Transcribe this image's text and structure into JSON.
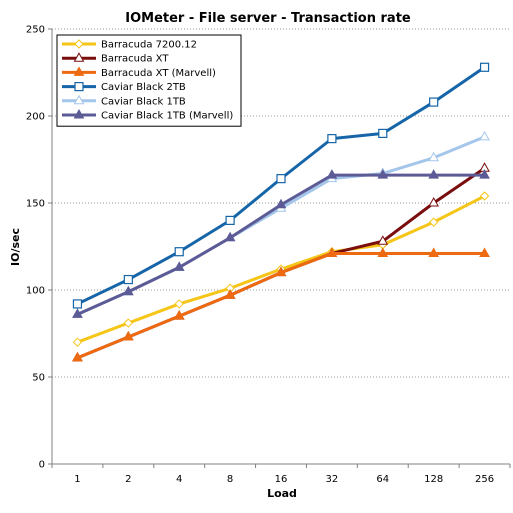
{
  "chart_data": {
    "type": "line",
    "title": "IOMeter - File server - Transaction rate",
    "xlabel": "Load",
    "ylabel": "IO/sec",
    "categories": [
      "1",
      "2",
      "4",
      "8",
      "16",
      "32",
      "64",
      "128",
      "256"
    ],
    "yticks": [
      "0",
      "50",
      "100",
      "150",
      "200",
      "250"
    ],
    "ylim": [
      0,
      250
    ],
    "grid": "horizontal-dotted",
    "legend_position": "top-left",
    "series": [
      {
        "name": "Barracuda 7200.12",
        "color": "#f5c518",
        "marker": "diamond-open",
        "values": [
          70,
          81,
          92,
          101,
          112,
          122,
          126,
          139,
          154
        ]
      },
      {
        "name": "Barracuda XT",
        "color": "#7a0e0e",
        "marker": "triangle-open",
        "values": [
          61,
          73,
          85,
          97,
          110,
          121,
          128,
          150,
          170
        ]
      },
      {
        "name": "Barracuda XT (Marvell)",
        "color": "#ee6a10",
        "marker": "triangle-filled",
        "values": [
          61,
          73,
          85,
          97,
          110,
          121,
          121,
          121,
          121
        ]
      },
      {
        "name": "Caviar Black 2TB",
        "color": "#1565a8",
        "marker": "square-open",
        "values": [
          92,
          106,
          122,
          140,
          164,
          187,
          190,
          208,
          228
        ]
      },
      {
        "name": "Caviar Black 1TB",
        "color": "#a4c6ea",
        "marker": "triangle-open",
        "values": [
          86,
          99,
          113,
          130,
          147,
          164,
          167,
          176,
          188
        ]
      },
      {
        "name": "Caviar Black 1TB (Marvell)",
        "color": "#5c5b96",
        "marker": "triangle-filled",
        "values": [
          86,
          99,
          113,
          130,
          149,
          166,
          166,
          166,
          166
        ]
      }
    ]
  }
}
